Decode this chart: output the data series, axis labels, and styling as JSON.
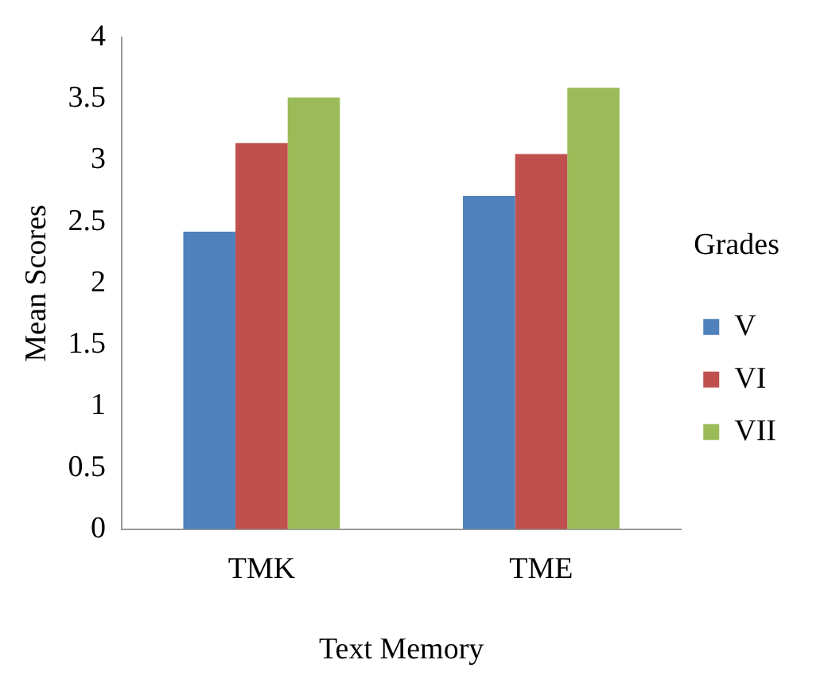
{
  "chart_data": {
    "type": "bar",
    "xlabel": "Text Memory",
    "ylabel": "Mean Scores",
    "legend_title": "Grades",
    "categories": [
      "TMK",
      "TME"
    ],
    "series": [
      {
        "name": "V",
        "color": "#4f81bd",
        "values": [
          2.42,
          2.71
        ]
      },
      {
        "name": "VI",
        "color": "#c0504d",
        "values": [
          3.14,
          3.05
        ]
      },
      {
        "name": "VII",
        "color": "#9bbb59",
        "values": [
          3.51,
          3.59
        ]
      }
    ],
    "ylim": [
      0,
      4
    ],
    "yticks": [
      0,
      0.5,
      1,
      1.5,
      2,
      2.5,
      3,
      3.5,
      4
    ],
    "grid": false,
    "legend": "right"
  }
}
